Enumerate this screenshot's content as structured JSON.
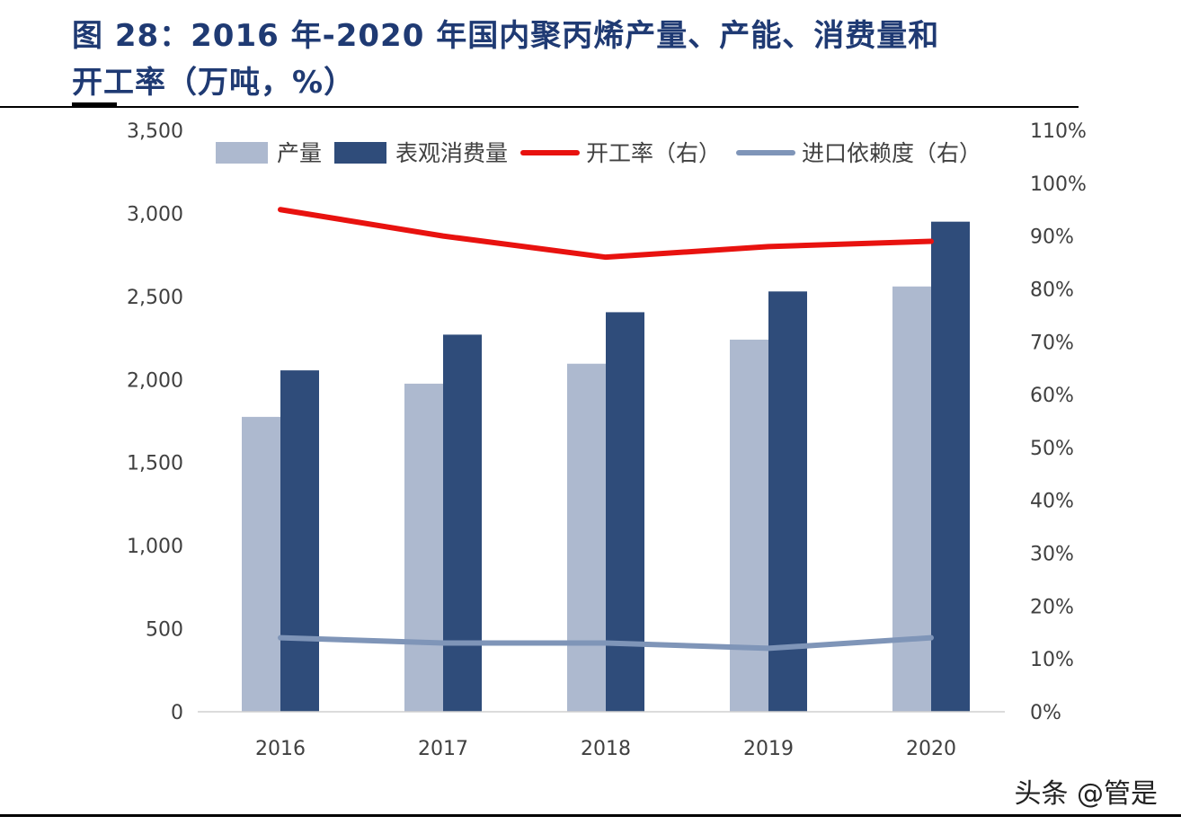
{
  "header": {
    "title_line1": "图 28：2016 年-2020 年国内聚丙烯产量、产能、消费量和",
    "title_line2": "开工率（万吨，%）"
  },
  "watermark": "头条 @管是",
  "colors": {
    "production": "#adb9cf",
    "consumption": "#2f4c7a",
    "utilization": "#e8120f",
    "import_dependence": "#7f95b8",
    "title": "#1f3a73"
  },
  "chart_data": {
    "type": "bar",
    "categories": [
      "2016",
      "2017",
      "2018",
      "2019",
      "2020"
    ],
    "series": [
      {
        "name": "产量",
        "type": "bar",
        "axis": "left",
        "values": [
          1775,
          1975,
          2095,
          2240,
          2560
        ]
      },
      {
        "name": "表观消费量",
        "type": "bar",
        "axis": "left",
        "values": [
          2055,
          2270,
          2405,
          2530,
          2950
        ]
      },
      {
        "name": "开工率（右）",
        "type": "line",
        "axis": "right",
        "values": [
          95,
          90,
          86,
          88,
          89
        ]
      },
      {
        "name": "进口依赖度（右）",
        "type": "line",
        "axis": "right",
        "values": [
          14,
          13,
          13,
          12,
          14
        ]
      }
    ],
    "ylim_left": [
      0,
      3500
    ],
    "yticks_left": [
      "0",
      "500",
      "1,000",
      "1,500",
      "2,000",
      "2,500",
      "3,000",
      "3,500"
    ],
    "ylim_right": [
      0,
      110
    ],
    "yticks_right": [
      "0%",
      "10%",
      "20%",
      "30%",
      "40%",
      "50%",
      "60%",
      "70%",
      "80%",
      "90%",
      "100%",
      "110%"
    ],
    "legend": "top-inside",
    "grid": false
  }
}
